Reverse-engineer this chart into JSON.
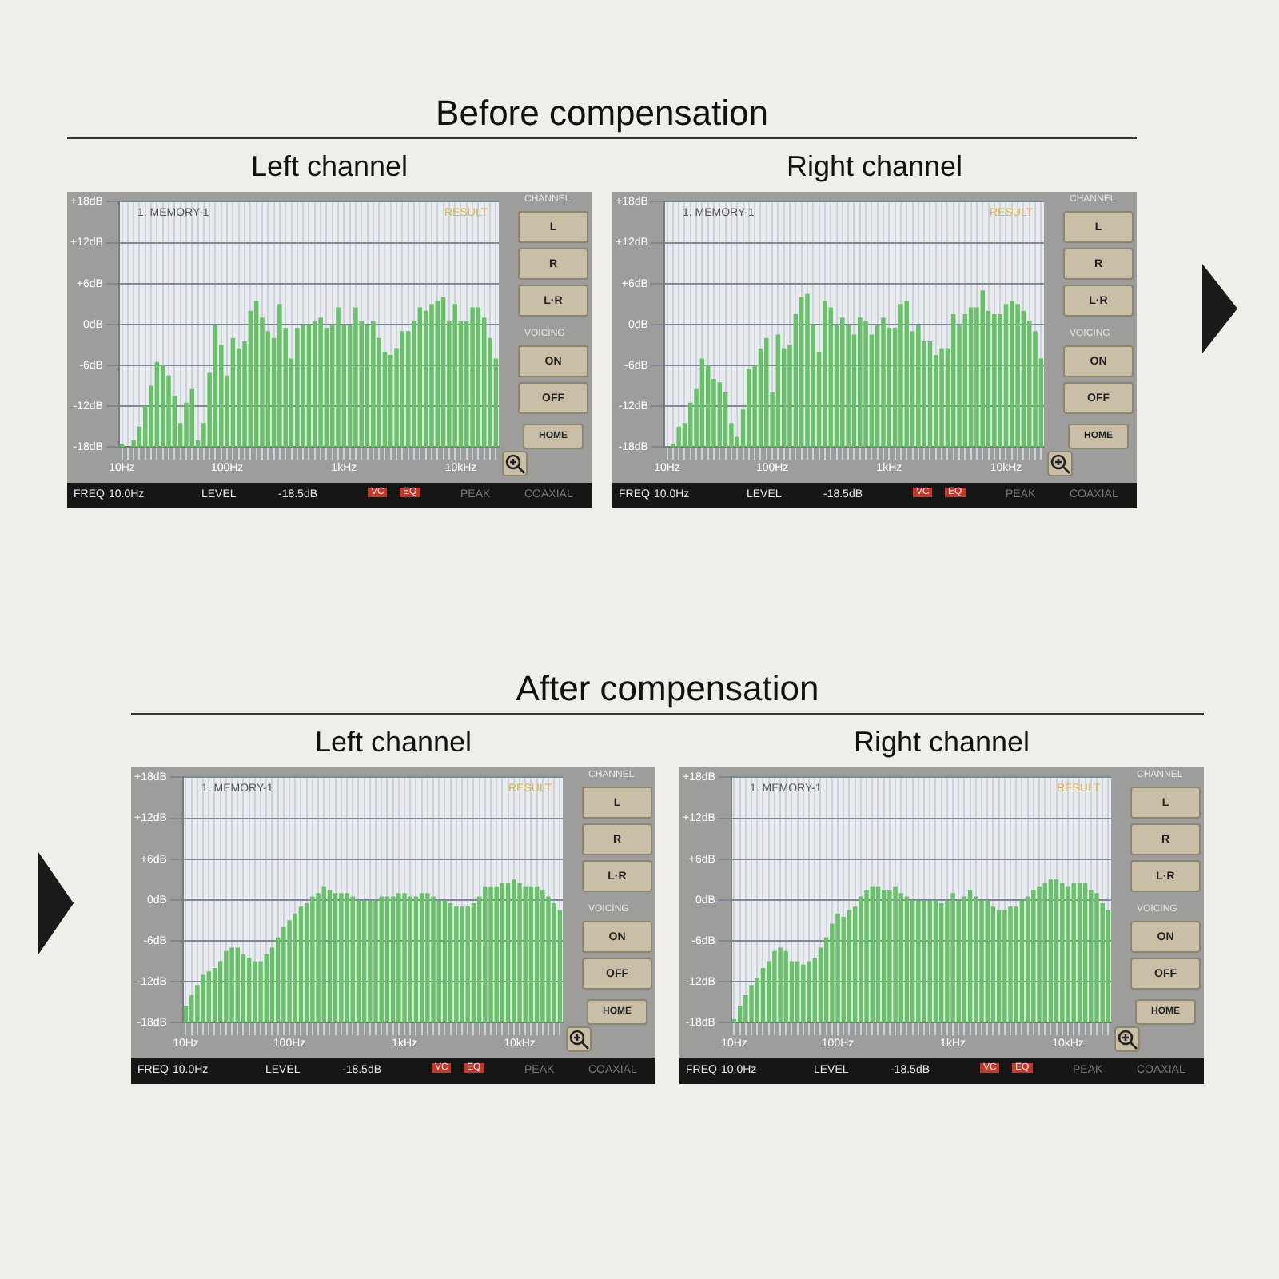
{
  "chart_data": [
    {
      "type": "bar",
      "subtitle": "Before compensation",
      "title": "Left channel",
      "categories": [
        "10Hz",
        null,
        null,
        null,
        null,
        null,
        null,
        null,
        null,
        null,
        null,
        null,
        null,
        null,
        null,
        null,
        null,
        null,
        "100Hz",
        null,
        null,
        null,
        null,
        null,
        null,
        null,
        null,
        null,
        null,
        null,
        null,
        null,
        null,
        null,
        null,
        null,
        null,
        null,
        "1kHz",
        null,
        null,
        null,
        null,
        null,
        null,
        null,
        null,
        null,
        null,
        null,
        null,
        null,
        null,
        null,
        null,
        null,
        null,
        null,
        "10kHz",
        null,
        null,
        null,
        null,
        null,
        null
      ],
      "values": [
        0.5,
        null,
        1,
        3,
        6,
        9,
        12.5,
        12,
        10.5,
        7.5,
        3.5,
        6.5,
        8.5,
        1,
        3.5,
        11,
        18,
        15,
        10.5,
        16,
        14.5,
        15.5,
        20,
        21.5,
        19,
        17,
        16,
        21,
        17.5,
        13,
        17.5,
        18,
        18,
        18.5,
        19,
        17.5,
        18,
        20.5,
        18,
        18,
        20.5,
        18.5,
        18,
        18.5,
        16,
        14,
        13.5,
        14.5,
        17,
        17,
        18.5,
        20.5,
        20,
        21,
        21.5,
        22,
        18.5,
        21,
        18.5,
        18.5,
        20.5,
        20.5,
        19,
        16,
        13
      ],
      "base": [
        -18,
        null,
        -18,
        -18,
        -18,
        -18,
        -18,
        -18,
        -18,
        -18,
        -18,
        -18,
        -18,
        -18,
        -18,
        -18,
        -18,
        -18,
        -18,
        -18,
        -18,
        -18,
        -18,
        -18,
        -18,
        -18,
        -18,
        -18,
        -18,
        -18,
        -18,
        -18,
        -18,
        -18,
        -18,
        -18,
        -18,
        -18,
        -18,
        -18,
        -18,
        -18,
        -18,
        -18,
        -18,
        -18,
        -18,
        -18,
        -18,
        -18,
        -18,
        -18,
        -18,
        -18,
        -18,
        -18,
        -18,
        -18,
        -18,
        -18,
        -18,
        -18,
        -18,
        -18,
        -18
      ],
      "color": "#66c266",
      "ylim": [
        -18,
        18
      ],
      "yticks": [
        {
          "value": -18,
          "label": "-18dB"
        },
        {
          "value": -12,
          "label": "-12dB"
        },
        {
          "value": -6,
          "label": "-6dB"
        },
        {
          "value": 0,
          "label": "0dB"
        },
        {
          "value": 6,
          "label": "+6dB"
        },
        {
          "value": 12,
          "label": "+12dB"
        },
        {
          "value": 18,
          "label": "+18dB"
        }
      ],
      "grid": true,
      "annotations": [
        "1. MEMORY-1",
        "RESULT",
        "CHANNEL",
        "L",
        "R",
        "L·R",
        "VOICING",
        "ON",
        "OFF",
        "HOME",
        "FREQ",
        "10.0Hz",
        "LEVEL",
        "-18.5dB",
        "VC",
        "EQ",
        "PEAK",
        "COAXIAL"
      ]
    },
    {
      "type": "bar",
      "title": "Right channel",
      "categories": [
        "10Hz",
        null,
        null,
        null,
        null,
        null,
        null,
        null,
        null,
        null,
        null,
        null,
        null,
        null,
        null,
        null,
        null,
        null,
        "100Hz",
        null,
        null,
        null,
        null,
        null,
        null,
        null,
        null,
        null,
        null,
        null,
        null,
        null,
        null,
        null,
        null,
        null,
        null,
        null,
        "1kHz",
        null,
        null,
        null,
        null,
        null,
        null,
        null,
        null,
        null,
        null,
        null,
        null,
        null,
        null,
        null,
        null,
        null,
        null,
        null,
        "10kHz",
        null,
        null,
        null,
        null,
        null,
        null
      ],
      "values": [
        null,
        0.5,
        3,
        3.5,
        6.5,
        8.5,
        13,
        12,
        10,
        9.5,
        8,
        3.5,
        1.5,
        5.5,
        11.5,
        12,
        14.5,
        16,
        8,
        16.5,
        14.5,
        15,
        19.5,
        22,
        22.5,
        18,
        14,
        21.5,
        20.5,
        18,
        19,
        18,
        16.5,
        19,
        18.5,
        16.5,
        18,
        19,
        17.5,
        17.5,
        21,
        21.5,
        17,
        18,
        15.5,
        15.5,
        13.5,
        14.5,
        14.5,
        19.5,
        18,
        19.5,
        20.5,
        20.5,
        23,
        20,
        19.5,
        19.5,
        21,
        21.5,
        21,
        20,
        18.5,
        17,
        13
      ],
      "base": [
        null,
        -18,
        -18,
        -18,
        -18,
        -18,
        -18,
        -18,
        -18,
        -18,
        -18,
        -18,
        -18,
        -18,
        -18,
        -18,
        -18,
        -18,
        -18,
        -18,
        -18,
        -18,
        -18,
        -18,
        -18,
        -18,
        -18,
        -18,
        -18,
        -18,
        -18,
        -18,
        -18,
        -18,
        -18,
        -18,
        -18,
        -18,
        -18,
        -18,
        -18,
        -18,
        -18,
        -18,
        -18,
        -18,
        -18,
        -18,
        -18,
        -18,
        -18,
        -18,
        -18,
        -18,
        -18,
        -18,
        -18,
        -18,
        -18,
        -18,
        -18,
        -18,
        -18,
        -18,
        -18
      ],
      "color": "#66c266",
      "ylim": [
        -18,
        18
      ],
      "yticks": [
        {
          "value": -18,
          "label": "-18dB"
        },
        {
          "value": -12,
          "label": "-12dB"
        },
        {
          "value": -6,
          "label": "-6dB"
        },
        {
          "value": 0,
          "label": "0dB"
        },
        {
          "value": 6,
          "label": "+6dB"
        },
        {
          "value": 12,
          "label": "+12dB"
        },
        {
          "value": 18,
          "label": "+18dB"
        }
      ],
      "grid": true,
      "annotations": [
        "1. MEMORY-1",
        "RESULT",
        "CHANNEL",
        "L",
        "R",
        "L·R",
        "VOICING",
        "ON",
        "OFF",
        "HOME",
        "FREQ",
        "10.0Hz",
        "LEVEL",
        "-18.5dB",
        "VC",
        "EQ",
        "PEAK",
        "COAXIAL"
      ]
    },
    {
      "type": "bar",
      "subtitle": "After compensation",
      "title": "Left channel",
      "categories": [
        "10Hz",
        null,
        null,
        null,
        null,
        null,
        null,
        null,
        null,
        null,
        null,
        null,
        null,
        null,
        null,
        null,
        null,
        null,
        "100Hz",
        null,
        null,
        null,
        null,
        null,
        null,
        null,
        null,
        null,
        null,
        null,
        null,
        null,
        null,
        null,
        null,
        null,
        null,
        null,
        "1kHz",
        null,
        null,
        null,
        null,
        null,
        null,
        null,
        null,
        null,
        null,
        null,
        null,
        null,
        null,
        null,
        null,
        null,
        null,
        null,
        "10kHz",
        null,
        null,
        null,
        null,
        null,
        null,
        null
      ],
      "values": [
        2.5,
        4,
        5.5,
        7,
        7.5,
        8,
        9,
        10.5,
        11,
        11,
        10,
        9.5,
        9,
        9,
        10,
        11,
        12.5,
        14,
        15,
        16,
        17,
        17.5,
        18.5,
        19,
        20,
        19.5,
        19,
        19,
        19,
        18.5,
        18,
        18,
        18,
        18,
        18.5,
        18.5,
        18.5,
        19,
        19,
        18.5,
        18.5,
        19,
        19,
        18.5,
        18,
        18,
        17.5,
        17,
        17,
        17,
        17.5,
        18.5,
        20,
        20,
        20,
        20.5,
        20.5,
        21,
        20.5,
        20,
        20,
        20,
        19.5,
        18.5,
        17.5,
        16.5
      ],
      "base": [
        -18,
        -18,
        -18,
        -18,
        -18,
        -18,
        -18,
        -18,
        -18,
        -18,
        -18,
        -18,
        -18,
        -18,
        -18,
        -18,
        -18,
        -18,
        -18,
        -18,
        -18,
        -18,
        -18,
        -18,
        -18,
        -18,
        -18,
        -18,
        -18,
        -18,
        -18,
        -18,
        -18,
        -18,
        -18,
        -18,
        -18,
        -18,
        -18,
        -18,
        -18,
        -18,
        -18,
        -18,
        -18,
        -18,
        -18,
        -18,
        -18,
        -18,
        -18,
        -18,
        -18,
        -18,
        -18,
        -18,
        -18,
        -18,
        -18,
        -18,
        -18,
        -18,
        -18,
        -18,
        -18,
        -18
      ],
      "color": "#66c266",
      "ylim": [
        -18,
        18
      ],
      "yticks": [
        {
          "value": -18,
          "label": "-18dB"
        },
        {
          "value": -12,
          "label": "-12dB"
        },
        {
          "value": -6,
          "label": "-6dB"
        },
        {
          "value": 0,
          "label": "0dB"
        },
        {
          "value": 6,
          "label": "+6dB"
        },
        {
          "value": 12,
          "label": "+12dB"
        },
        {
          "value": 18,
          "label": "+18dB"
        }
      ],
      "grid": true,
      "annotations": [
        "1. MEMORY-1",
        "RESULT",
        "CHANNEL",
        "L",
        "R",
        "L·R",
        "VOICING",
        "ON",
        "OFF",
        "HOME",
        "FREQ",
        "10.0Hz",
        "LEVEL",
        "-18.5dB",
        "VC",
        "EQ",
        "PEAK",
        "COAXIAL"
      ]
    },
    {
      "type": "bar",
      "title": "Right channel",
      "categories": [
        "10Hz",
        null,
        null,
        null,
        null,
        null,
        null,
        null,
        null,
        null,
        null,
        null,
        null,
        null,
        null,
        null,
        null,
        null,
        "100Hz",
        null,
        null,
        null,
        null,
        null,
        null,
        null,
        null,
        null,
        null,
        null,
        null,
        null,
        null,
        null,
        null,
        null,
        null,
        null,
        "1kHz",
        null,
        null,
        null,
        null,
        null,
        null,
        null,
        null,
        null,
        null,
        null,
        null,
        null,
        null,
        null,
        null,
        null,
        null,
        null,
        "10kHz",
        null,
        null,
        null,
        null,
        null,
        null,
        null
      ],
      "values": [
        0.5,
        2.5,
        4,
        5.5,
        6.5,
        8,
        9,
        10.5,
        11,
        10.5,
        9,
        9,
        8.5,
        9,
        9.5,
        11,
        12.5,
        14.5,
        16,
        15.5,
        16.5,
        17,
        18.5,
        19.5,
        20,
        20,
        19.5,
        19.5,
        20,
        19,
        18.5,
        18,
        18,
        18,
        18,
        18,
        17.5,
        18,
        19,
        18,
        18.5,
        19.5,
        18.5,
        18,
        18,
        17,
        16.5,
        16.5,
        17,
        17,
        18,
        18.5,
        19.5,
        20,
        20.5,
        21,
        21,
        20.5,
        20,
        20.5,
        20.5,
        20.5,
        19.5,
        19,
        17.5,
        16.5
      ],
      "base": [
        -18,
        -18,
        -18,
        -18,
        -18,
        -18,
        -18,
        -18,
        -18,
        -18,
        -18,
        -18,
        -18,
        -18,
        -18,
        -18,
        -18,
        -18,
        -18,
        -18,
        -18,
        -18,
        -18,
        -18,
        -18,
        -18,
        -18,
        -18,
        -18,
        -18,
        -18,
        -18,
        -18,
        -18,
        -18,
        -18,
        -18,
        -18,
        -18,
        -18,
        -18,
        -18,
        -18,
        -18,
        -18,
        -18,
        -18,
        -18,
        -18,
        -18,
        -18,
        -18,
        -18,
        -18,
        -18,
        -18,
        -18,
        -18,
        -18,
        -18,
        -18,
        -18,
        -18,
        -18,
        -18,
        -18
      ],
      "color": "#66c266",
      "ylim": [
        -18,
        18
      ],
      "yticks": [
        {
          "value": -18,
          "label": "-18dB"
        },
        {
          "value": -12,
          "label": "-12dB"
        },
        {
          "value": -6,
          "label": "-6dB"
        },
        {
          "value": 0,
          "label": "0dB"
        },
        {
          "value": 6,
          "label": "+6dB"
        },
        {
          "value": 12,
          "label": "+12dB"
        },
        {
          "value": 18,
          "label": "+18dB"
        }
      ],
      "grid": true,
      "annotations": [
        "1. MEMORY-1",
        "RESULT",
        "CHANNEL",
        "L",
        "R",
        "L·R",
        "VOICING",
        "ON",
        "OFF",
        "HOME",
        "FREQ",
        "10.0Hz",
        "LEVEL",
        "-18.5dB",
        "VC",
        "EQ",
        "PEAK",
        "COAXIAL"
      ]
    }
  ]
}
